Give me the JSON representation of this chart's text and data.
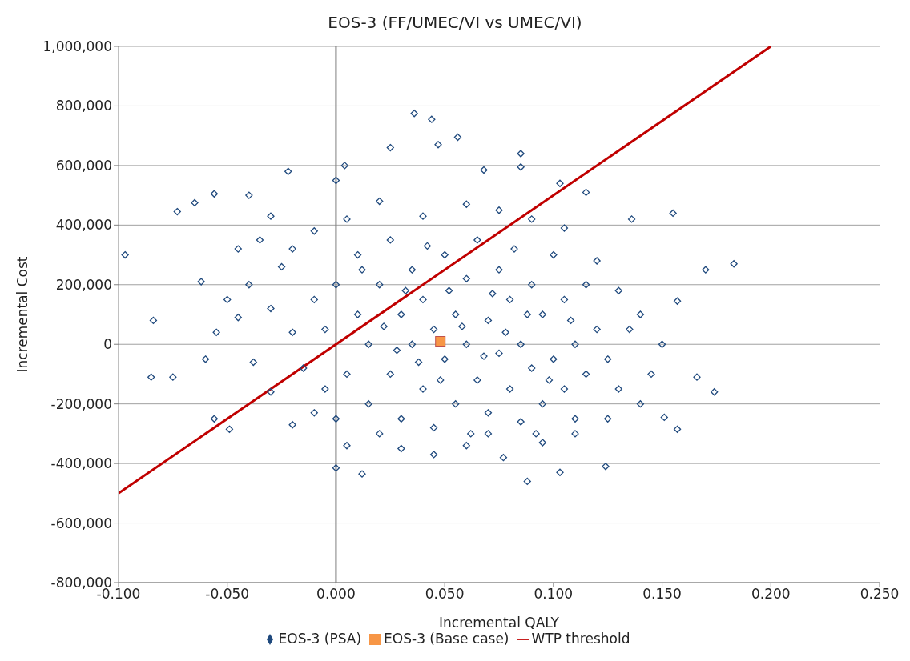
{
  "chart_data": {
    "type": "scatter",
    "title": "EOS-3 (FF/UMEC/VI vs UMEC/VI)",
    "xlabel": "Incremental QALY",
    "ylabel": "Incremental Cost",
    "xlim": [
      -0.1,
      0.25
    ],
    "xticks": [
      {
        "value": -0.1,
        "label": "-0.100"
      },
      {
        "value": -0.05,
        "label": "-0.050"
      },
      {
        "value": 0,
        "label": "0.000"
      },
      {
        "value": 0.05,
        "label": "0.050"
      },
      {
        "value": 0.1,
        "label": "0.100"
      },
      {
        "value": 0.15,
        "label": "0.150"
      },
      {
        "value": 0.2,
        "label": "0.200"
      },
      {
        "value": 0.25,
        "label": "0.250"
      }
    ],
    "ylim": [
      -800000,
      1000000
    ],
    "yticks": [
      {
        "value": -800000,
        "label": "-800,000"
      },
      {
        "value": -600000,
        "label": "-600,000"
      },
      {
        "value": -400000,
        "label": "-400,000"
      },
      {
        "value": -200000,
        "label": "-200,000"
      },
      0,
      {
        "value": 200000,
        "label": "200,000"
      },
      {
        "value": 400000,
        "label": "400,000"
      },
      {
        "value": 600000,
        "label": "600,000"
      },
      {
        "value": 800000,
        "label": "800,000"
      },
      {
        "value": 1000000,
        "label": "1,000,000"
      }
    ],
    "grid": "y",
    "legend": "bottom",
    "ref_lines": [
      {
        "axis": "x",
        "value": 0,
        "color": "#808080"
      }
    ],
    "series": [
      {
        "name": "EOS-3 (PSA)",
        "marker": "diamond",
        "color": "#1f497d",
        "x": [
          -0.084,
          -0.085,
          -0.097,
          -0.073,
          -0.065,
          -0.075,
          -0.056,
          -0.056,
          -0.049,
          -0.062,
          0.036,
          0.044,
          0.056,
          0.0,
          0.012,
          0.088,
          0.077,
          0.103,
          0.136,
          0.155,
          0.17,
          0.183,
          0.166,
          0.174,
          0.157,
          0.157,
          0.151,
          0.124,
          -0.04,
          -0.03,
          -0.022,
          0.0,
          0.004,
          0.025,
          0.047,
          0.068,
          0.085,
          0.085,
          0.103,
          0.115,
          -0.045,
          -0.05,
          -0.04,
          -0.038,
          -0.03,
          -0.02,
          -0.01,
          0.005,
          0.03,
          0.045,
          0.06,
          0.07,
          0.095,
          0.11,
          0.125,
          0.14,
          0.145,
          0.15,
          0.14,
          0.13,
          0.12,
          0.105,
          0.09,
          0.075,
          0.06,
          0.04,
          0.02,
          0.005,
          -0.01,
          -0.02,
          -0.025,
          -0.03,
          -0.02,
          -0.015,
          -0.005,
          0.0,
          -0.045,
          -0.055,
          -0.06,
          -0.035,
          0.0,
          0.01,
          0.01,
          0.015,
          0.015,
          0.02,
          0.025,
          0.025,
          0.03,
          0.03,
          0.035,
          0.035,
          0.04,
          0.04,
          0.045,
          0.045,
          0.05,
          0.05,
          0.055,
          0.055,
          0.06,
          0.06,
          0.065,
          0.065,
          0.07,
          0.07,
          0.075,
          0.075,
          0.08,
          0.08,
          0.085,
          0.085,
          0.09,
          0.09,
          0.095,
          0.095,
          0.1,
          0.1,
          0.105,
          0.105,
          0.11,
          0.11,
          0.115,
          0.115,
          0.12,
          0.125,
          0.13,
          0.135,
          -0.005,
          -0.01,
          0.005,
          0.02,
          0.028,
          0.038,
          0.048,
          0.058,
          0.068,
          0.078,
          0.088,
          0.098,
          0.012,
          0.022,
          0.032,
          0.042,
          0.052,
          0.062,
          0.072,
          0.082,
          0.092,
          0.108
        ],
        "values": [
          80000,
          -110000,
          300000,
          445000,
          475000,
          -110000,
          505000,
          -250000,
          -285000,
          210000,
          775000,
          755000,
          695000,
          -415000,
          -435000,
          -460000,
          -380000,
          -430000,
          420000,
          440000,
          250000,
          270000,
          -110000,
          -160000,
          145000,
          -285000,
          -245000,
          -410000,
          500000,
          430000,
          580000,
          550000,
          600000,
          660000,
          670000,
          585000,
          640000,
          595000,
          540000,
          510000,
          320000,
          150000,
          200000,
          -60000,
          -160000,
          -270000,
          -230000,
          -340000,
          -350000,
          -370000,
          -340000,
          -300000,
          -330000,
          -300000,
          -250000,
          -200000,
          -100000,
          0,
          100000,
          180000,
          280000,
          390000,
          420000,
          450000,
          470000,
          430000,
          480000,
          420000,
          380000,
          320000,
          260000,
          120000,
          40000,
          -80000,
          -150000,
          -250000,
          90000,
          40000,
          -50000,
          350000,
          200000,
          100000,
          300000,
          0,
          -200000,
          200000,
          -100000,
          350000,
          100000,
          -250000,
          0,
          250000,
          -150000,
          150000,
          50000,
          -280000,
          -50000,
          300000,
          100000,
          -200000,
          0,
          220000,
          -120000,
          350000,
          80000,
          -230000,
          -30000,
          250000,
          150000,
          -150000,
          0,
          -260000,
          200000,
          -80000,
          100000,
          -200000,
          300000,
          -50000,
          150000,
          -150000,
          0,
          -250000,
          200000,
          -100000,
          50000,
          -50000,
          -150000,
          50000,
          50000,
          150000,
          -100000,
          -300000,
          -20000,
          -60000,
          -120000,
          60000,
          -40000,
          40000,
          100000,
          -120000,
          250000,
          60000,
          180000,
          330000,
          180000,
          -300000,
          170000,
          320000,
          -300000,
          80000
        ]
      },
      {
        "name": "EOS-3 (Base case)",
        "marker": "square",
        "color": "#f79646",
        "x": [
          0.048
        ],
        "values": [
          10000
        ]
      },
      {
        "name": "WTP threshold",
        "type": "line",
        "marker": "none",
        "color": "#c00000",
        "x": [
          -0.1,
          0.2
        ],
        "values": [
          -500000,
          1000000
        ]
      }
    ]
  }
}
